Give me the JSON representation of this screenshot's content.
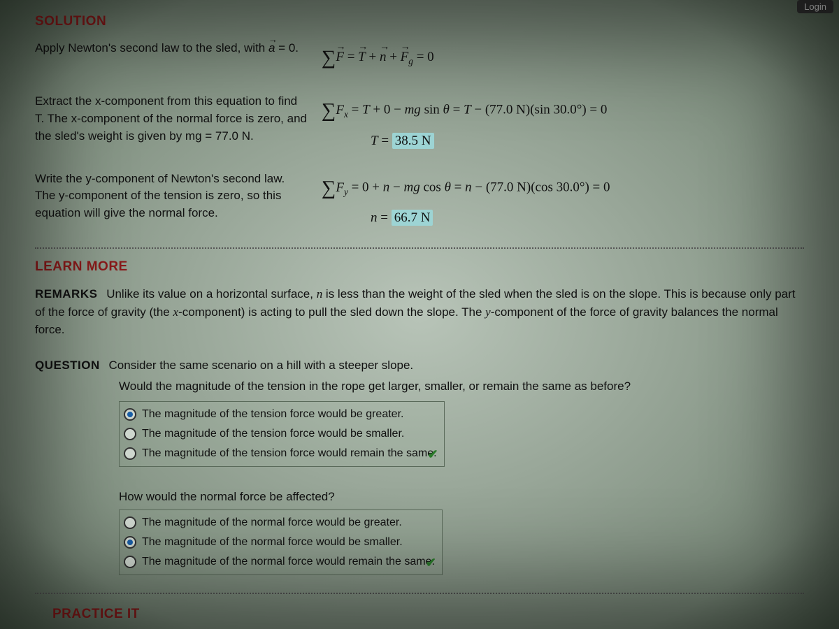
{
  "login_label": "Login",
  "solution_header": "SOLUTION",
  "learn_more_header": "LEARN MORE",
  "practice_header": "PRACTICE IT",
  "step1": {
    "desc": "Apply Newton's second law to the sled, with a⃗ = 0.",
    "eq": "∑F⃗ = T⃗ + n⃗ + F⃗_g = 0"
  },
  "step2": {
    "desc": "Extract the x-component from this equation to find T. The x-component of the normal force is zero, and the sled's weight is given by mg = 77.0 N.",
    "eq_line1": "∑F_x = T + 0 − mg sin θ = T − (77.0 N)(sin 30.0°) = 0",
    "eq_line2_prefix": "T = ",
    "eq_line2_value": "38.5 N"
  },
  "step3": {
    "desc": "Write the y-component of Newton's second law. The y-component of the tension is zero, so this equation will give the normal force.",
    "eq_line1": "∑F_y = 0 + n − mg cos θ = n − (77.0 N)(cos 30.0°) = 0",
    "eq_line2_prefix": "n = ",
    "eq_line2_value": "66.7 N"
  },
  "remarks": {
    "label": "REMARKS",
    "text": "Unlike its value on a horizontal surface, n is less than the weight of the sled when the sled is on the slope. This is because only part of the force of gravity (the x-component) is acting to pull the sled down the slope. The y-component of the force of gravity balances the normal force."
  },
  "question": {
    "label": "QUESTION",
    "text": "Consider the same scenario on a hill with a steeper slope.",
    "q1_text": "Would the magnitude of the tension in the rope get larger, smaller, or remain the same as before?",
    "q1_options": [
      "The magnitude of the tension force would be greater.",
      "The magnitude of the tension force would be smaller.",
      "The magnitude of the tension force would remain the same."
    ],
    "q1_selected": 0,
    "q1_correct": true,
    "q2_text": "How would the normal force be affected?",
    "q2_options": [
      "The magnitude of the normal force would be greater.",
      "The magnitude of the normal force would be smaller.",
      "The magnitude of the normal force would remain the same."
    ],
    "q2_selected": 1,
    "q2_correct": true
  },
  "colors": {
    "header_color": "#8a1a1a",
    "highlight_bg": "#9dd4d4",
    "radio_selected": "#1a5fa8",
    "check_color": "#2a7a2a"
  }
}
